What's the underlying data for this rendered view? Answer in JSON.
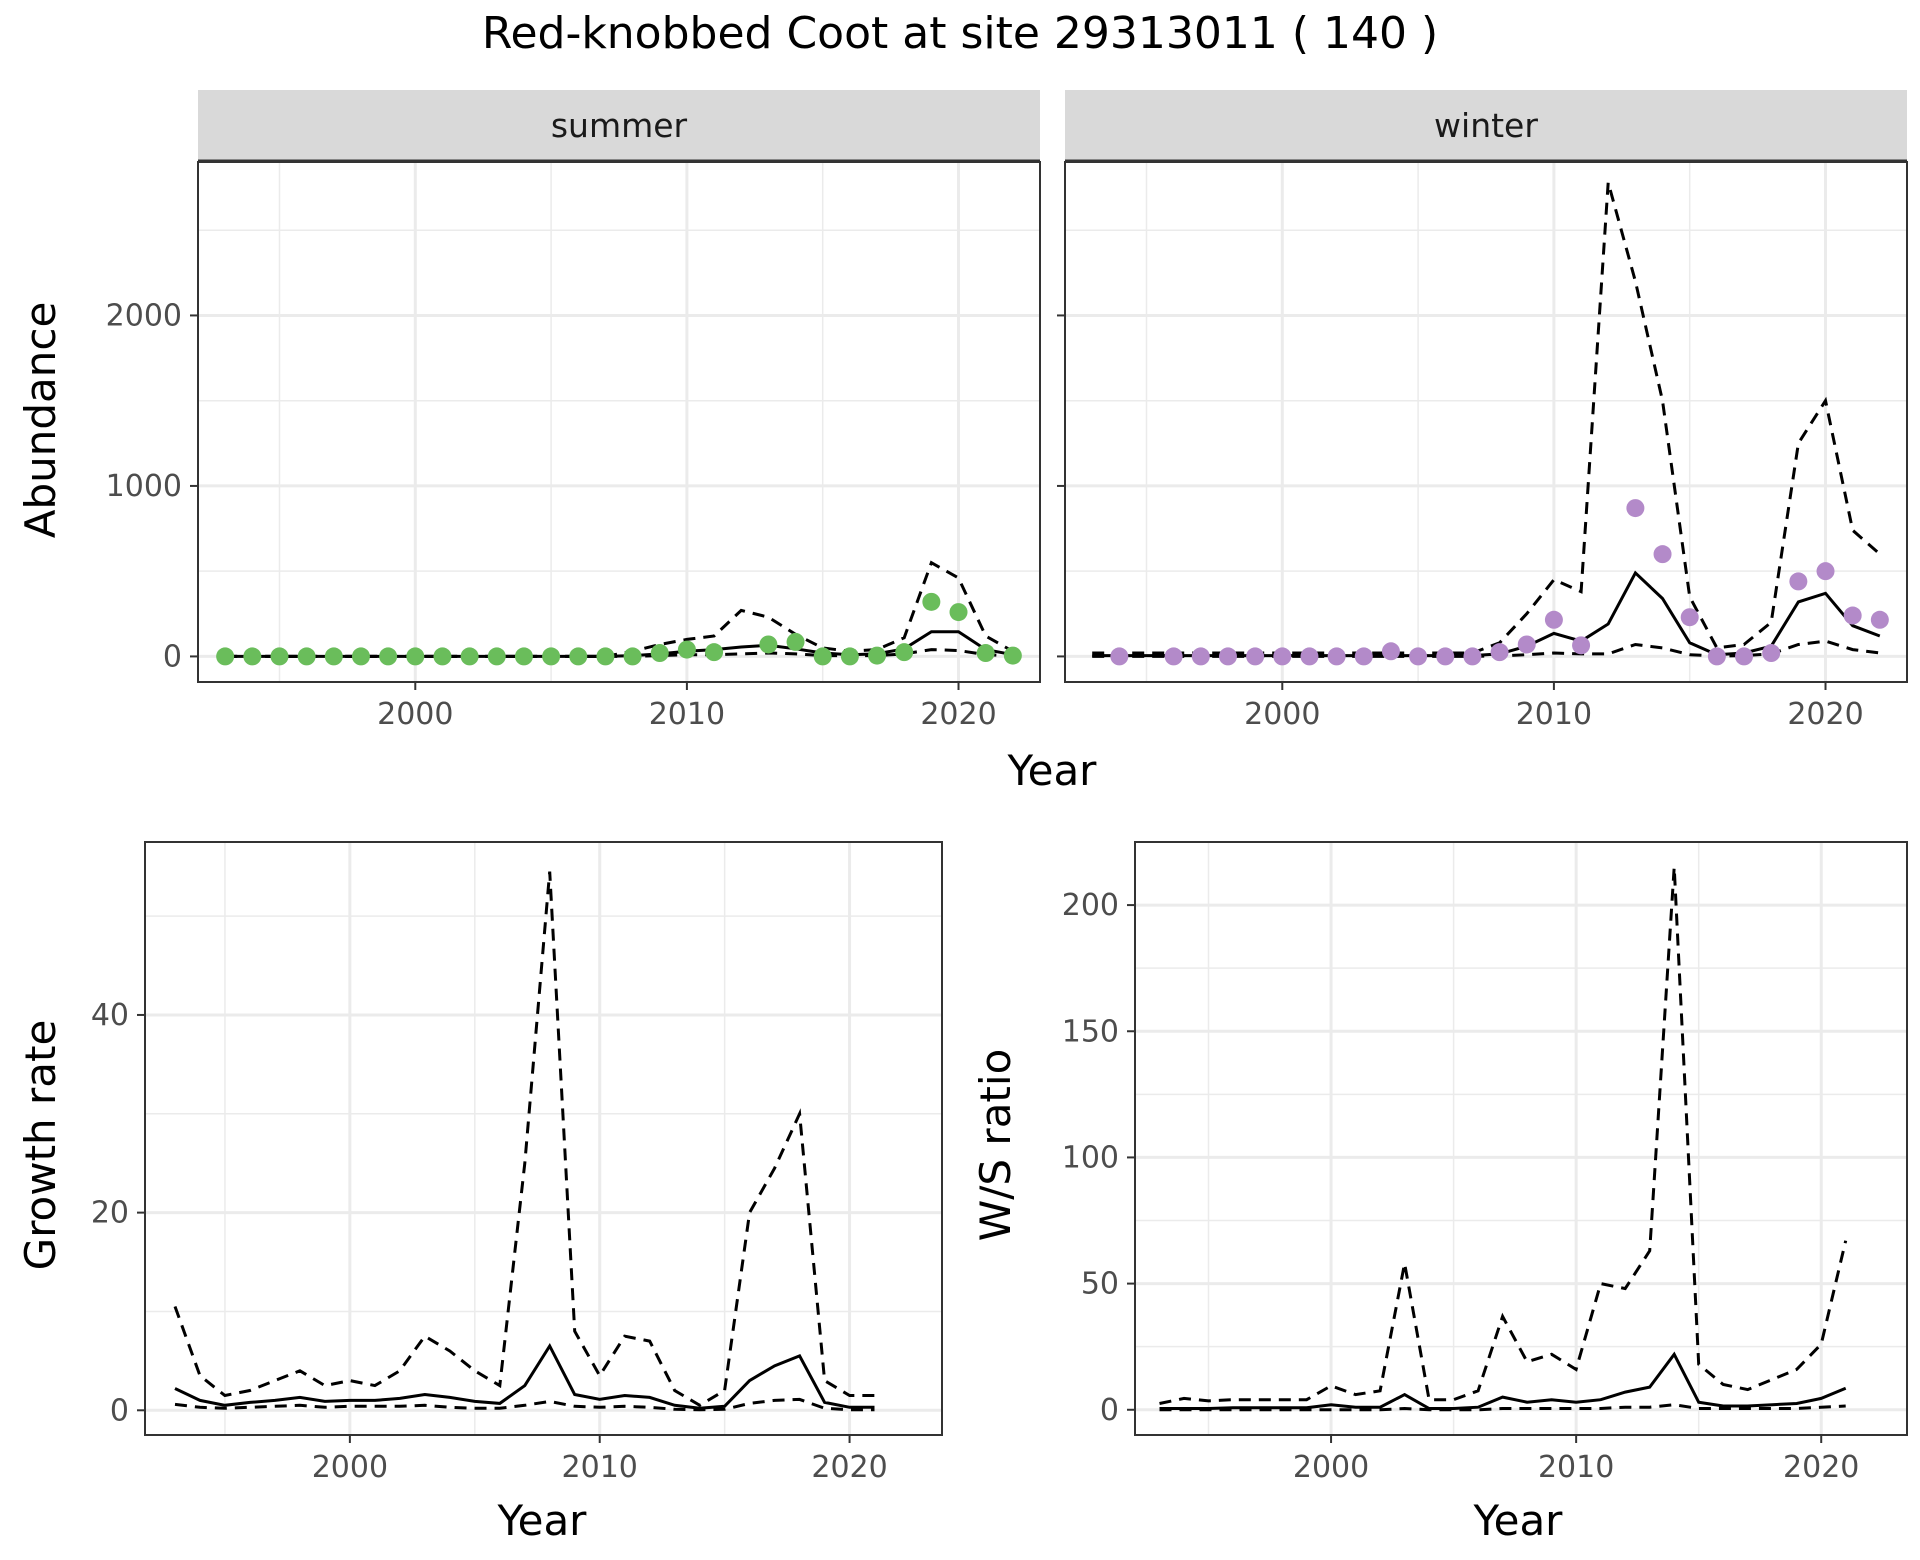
{
  "title": "Red-knobbed Coot at site 29313011 ( 140 )",
  "colors": {
    "summer_points": "#6abd5b",
    "winter_points": "#b38ac9",
    "lines": "#000000",
    "strip_fill": "#d9d9d9",
    "grid": "#ebebeb"
  },
  "chart_data": [
    {
      "type": "scatter",
      "facet": "summer",
      "xlabel": "Year",
      "ylabel": "Abundance",
      "xlim": [
        1992,
        2023
      ],
      "ylim": [
        -150,
        2900
      ],
      "xticks": [
        2000,
        2010,
        2020
      ],
      "yticks": [
        0,
        1000,
        2000
      ],
      "points": {
        "x": [
          1993,
          1994,
          1995,
          1996,
          1997,
          1998,
          1999,
          2000,
          2001,
          2002,
          2003,
          2004,
          2005,
          2006,
          2007,
          2008,
          2009,
          2010,
          2011,
          2013,
          2014,
          2015,
          2016,
          2017,
          2018,
          2019,
          2020,
          2021,
          2022
        ],
        "y": [
          0,
          0,
          0,
          0,
          0,
          0,
          0,
          0,
          0,
          0,
          0,
          0,
          0,
          0,
          0,
          0,
          20,
          40,
          25,
          70,
          85,
          0,
          0,
          5,
          25,
          320,
          260,
          20,
          5
        ]
      },
      "lines": {
        "x": [
          1993,
          1994,
          1995,
          1996,
          1997,
          1998,
          1999,
          2000,
          2001,
          2002,
          2003,
          2004,
          2005,
          2006,
          2007,
          2008,
          2009,
          2010,
          2011,
          2012,
          2013,
          2014,
          2015,
          2016,
          2017,
          2018,
          2019,
          2020,
          2021,
          2022
        ],
        "fit": [
          0,
          0,
          0,
          0,
          0,
          0,
          0,
          0,
          0,
          0,
          0,
          0,
          0,
          0,
          0,
          5,
          15,
          30,
          40,
          55,
          65,
          45,
          20,
          10,
          15,
          45,
          145,
          145,
          40,
          10
        ],
        "lower": [
          0,
          0,
          0,
          0,
          0,
          0,
          0,
          0,
          0,
          0,
          0,
          0,
          0,
          0,
          0,
          0,
          5,
          10,
          10,
          15,
          20,
          15,
          5,
          5,
          5,
          15,
          40,
          35,
          10,
          3
        ],
        "upper": [
          0,
          0,
          0,
          0,
          0,
          0,
          0,
          0,
          0,
          0,
          0,
          0,
          0,
          0,
          0,
          30,
          70,
          100,
          120,
          270,
          230,
          130,
          50,
          30,
          40,
          110,
          550,
          460,
          120,
          30
        ]
      }
    },
    {
      "type": "scatter",
      "facet": "winter",
      "xlabel": "Year",
      "ylabel": "Abundance",
      "xlim": [
        1992,
        2023
      ],
      "ylim": [
        -150,
        2900
      ],
      "xticks": [
        2000,
        2010,
        2020
      ],
      "yticks": [
        0,
        1000,
        2000
      ],
      "points": {
        "x": [
          1994,
          1996,
          1997,
          1998,
          1999,
          2000,
          2001,
          2002,
          2003,
          2004,
          2005,
          2006,
          2007,
          2008,
          2009,
          2010,
          2011,
          2013,
          2014,
          2015,
          2016,
          2017,
          2018,
          2019,
          2020,
          2021,
          2022
        ],
        "y": [
          0,
          0,
          0,
          0,
          0,
          0,
          0,
          0,
          0,
          30,
          0,
          0,
          0,
          25,
          70,
          215,
          65,
          870,
          600,
          230,
          0,
          0,
          20,
          440,
          500,
          240,
          215
        ]
      },
      "lines": {
        "x": [
          1993,
          1994,
          1995,
          1996,
          1997,
          1998,
          1999,
          2000,
          2001,
          2002,
          2003,
          2004,
          2005,
          2006,
          2007,
          2008,
          2009,
          2010,
          2011,
          2012,
          2013,
          2014,
          2015,
          2016,
          2017,
          2018,
          2019,
          2020,
          2021,
          2022
        ],
        "fit": [
          5,
          5,
          5,
          5,
          5,
          5,
          5,
          5,
          5,
          5,
          5,
          5,
          5,
          5,
          5,
          15,
          60,
          135,
          90,
          190,
          490,
          340,
          80,
          10,
          20,
          60,
          320,
          370,
          180,
          120
        ],
        "lower": [
          0,
          0,
          0,
          0,
          0,
          0,
          0,
          0,
          0,
          0,
          0,
          0,
          0,
          0,
          0,
          3,
          10,
          20,
          15,
          15,
          70,
          50,
          10,
          2,
          5,
          15,
          70,
          90,
          40,
          20
        ],
        "upper": [
          20,
          20,
          20,
          20,
          20,
          20,
          20,
          20,
          20,
          20,
          20,
          20,
          20,
          20,
          20,
          80,
          250,
          450,
          380,
          2780,
          2200,
          1500,
          350,
          50,
          70,
          200,
          1250,
          1500,
          740,
          600
        ]
      }
    },
    {
      "type": "line",
      "xlabel": "Year",
      "ylabel": "Growth rate",
      "xlim": [
        1991.8,
        2023.7
      ],
      "ylim": [
        -2.5,
        57.5
      ],
      "xticks": [
        2000,
        2010,
        2020
      ],
      "yticks": [
        0,
        20,
        40
      ],
      "lines": {
        "x": [
          1993,
          1994,
          1995,
          1996,
          1997,
          1998,
          1999,
          2000,
          2001,
          2002,
          2003,
          2004,
          2005,
          2006,
          2007,
          2008,
          2009,
          2010,
          2011,
          2012,
          2013,
          2014,
          2015,
          2016,
          2017,
          2018,
          2019,
          2020,
          2021
        ],
        "fit": [
          2.2,
          1.0,
          0.5,
          0.8,
          1.0,
          1.3,
          0.9,
          1.0,
          1.0,
          1.2,
          1.6,
          1.3,
          0.9,
          0.7,
          2.5,
          6.5,
          1.6,
          1.1,
          1.5,
          1.3,
          0.5,
          0.2,
          0.4,
          3.0,
          4.5,
          5.5,
          0.8,
          0.3,
          0.3
        ],
        "lower": [
          0.6,
          0.3,
          0.2,
          0.3,
          0.4,
          0.5,
          0.3,
          0.4,
          0.4,
          0.4,
          0.5,
          0.3,
          0.2,
          0.2,
          0.5,
          0.9,
          0.4,
          0.3,
          0.4,
          0.3,
          0.1,
          0.05,
          0.1,
          0.7,
          1.0,
          1.1,
          0.2,
          0.05,
          0.05
        ],
        "upper": [
          10.5,
          3.5,
          1.5,
          2.0,
          3.0,
          4.0,
          2.5,
          3.0,
          2.5,
          4.0,
          7.5,
          6.0,
          4.0,
          2.5,
          25,
          54.5,
          8.0,
          3.5,
          7.5,
          7.0,
          2.0,
          0.5,
          2.0,
          20,
          24.5,
          30,
          3.0,
          1.5,
          1.5
        ]
      }
    },
    {
      "type": "line",
      "xlabel": "Year",
      "ylabel": "W/S ratio",
      "xlim": [
        1992,
        2023.5
      ],
      "ylim": [
        -10,
        225
      ],
      "xticks": [
        2000,
        2010,
        2020
      ],
      "yticks": [
        0,
        50,
        100,
        150,
        200
      ],
      "lines": {
        "x": [
          1993,
          1994,
          1995,
          1996,
          1997,
          1998,
          1999,
          2000,
          2001,
          2002,
          2003,
          2004,
          2005,
          2006,
          2007,
          2008,
          2009,
          2010,
          2011,
          2012,
          2013,
          2014,
          2015,
          2016,
          2017,
          2018,
          2019,
          2020,
          2021
        ],
        "fit": [
          0.5,
          0.5,
          0.5,
          0.8,
          0.8,
          0.8,
          0.8,
          2.0,
          1.0,
          1.0,
          6.0,
          0.5,
          0.5,
          1.0,
          5.0,
          3.0,
          4.0,
          3.0,
          4.0,
          7.0,
          9.0,
          22,
          3.0,
          1.5,
          1.5,
          2.0,
          2.5,
          4.5,
          8.5
        ],
        "lower": [
          0,
          0,
          0,
          0,
          0,
          0,
          0,
          0,
          0,
          0,
          0.5,
          0,
          0,
          0,
          0.5,
          0.5,
          0.5,
          0.5,
          0.5,
          1.0,
          1.0,
          2.0,
          0.5,
          0.5,
          0.5,
          0.5,
          0.5,
          1.0,
          1.5
        ],
        "upper": [
          2.5,
          4.5,
          3.5,
          4.0,
          4.0,
          4.0,
          4.0,
          9.5,
          6.0,
          7.5,
          58,
          4.0,
          4.0,
          7.5,
          37,
          19,
          22,
          16,
          50,
          48,
          63,
          215,
          18,
          10,
          8,
          12,
          16,
          26,
          67
        ]
      }
    }
  ]
}
